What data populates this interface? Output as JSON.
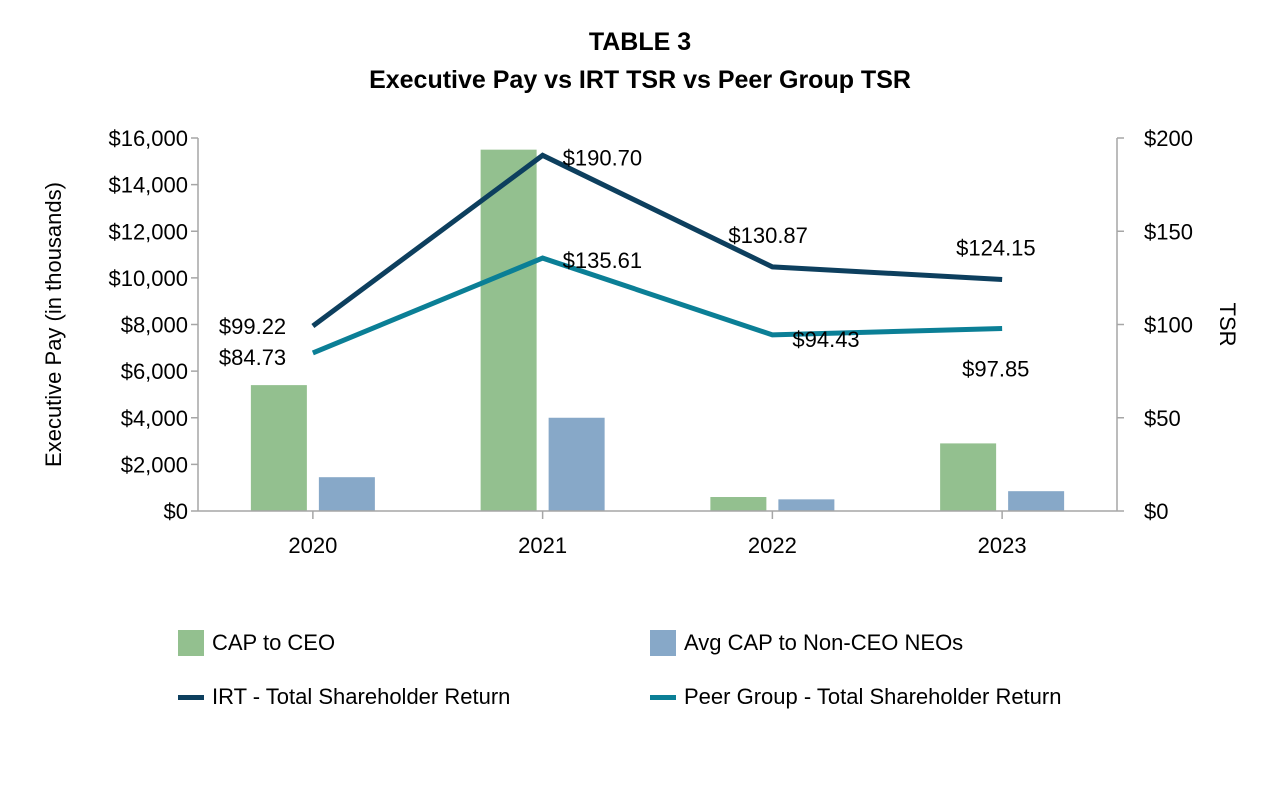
{
  "title": "TABLE 3",
  "subtitle": "Executive Pay vs IRT TSR vs Peer Group TSR",
  "colors": {
    "cap_ceo": "#93c08f",
    "cap_neo": "#87a8c8",
    "irt_tsr": "#0d3f5e",
    "peer_tsr": "#0b7f96",
    "axis": "#a6a6a6"
  },
  "chart_data": {
    "type": "bar+line",
    "title": "TABLE 3",
    "subtitle": "Executive Pay vs IRT TSR vs Peer Group TSR",
    "categories": [
      "2020",
      "2021",
      "2022",
      "2023"
    ],
    "ylabel_left": "Executive Pay (in thousands)",
    "ylabel_right": "TSR",
    "ylim_left": [
      0,
      16000
    ],
    "ylim_right": [
      0,
      200
    ],
    "left_ticks": [
      {
        "value": 0,
        "label": "$0"
      },
      {
        "value": 2000,
        "label": "$2,000"
      },
      {
        "value": 4000,
        "label": "$4,000"
      },
      {
        "value": 6000,
        "label": "$6,000"
      },
      {
        "value": 8000,
        "label": "$8,000"
      },
      {
        "value": 10000,
        "label": "$10,000"
      },
      {
        "value": 12000,
        "label": "$12,000"
      },
      {
        "value": 14000,
        "label": "$14,000"
      },
      {
        "value": 16000,
        "label": "$16,000"
      }
    ],
    "right_ticks": [
      {
        "value": 0,
        "label": "$0"
      },
      {
        "value": 50,
        "label": "$50"
      },
      {
        "value": 100,
        "label": "$100"
      },
      {
        "value": 150,
        "label": "$150"
      },
      {
        "value": 200,
        "label": "$200"
      }
    ],
    "bar_series": [
      {
        "name": "CAP to CEO",
        "axis": "left",
        "values": [
          5400,
          15500,
          600,
          2900
        ]
      },
      {
        "name": "Avg CAP to Non-CEO NEOs",
        "axis": "left",
        "values": [
          1450,
          4000,
          500,
          850
        ]
      }
    ],
    "line_series": [
      {
        "name": "IRT - Total Shareholder Return",
        "axis": "right",
        "values": [
          99.22,
          190.7,
          130.87,
          124.15
        ],
        "labels": [
          "$99.22",
          "$190.70",
          "$130.87",
          "$124.15"
        ]
      },
      {
        "name": "Peer Group - Total Shareholder Return",
        "axis": "right",
        "values": [
          84.73,
          135.61,
          94.43,
          97.85
        ],
        "labels": [
          "$84.73",
          "$135.61",
          "$94.43",
          "$97.85"
        ]
      }
    ],
    "grid": false,
    "legend_position": "bottom"
  },
  "legend": [
    {
      "label": "CAP to CEO"
    },
    {
      "label": "Avg CAP to Non-CEO NEOs"
    },
    {
      "label": "IRT - Total Shareholder Return"
    },
    {
      "label": "Peer Group - Total Shareholder Return"
    }
  ]
}
